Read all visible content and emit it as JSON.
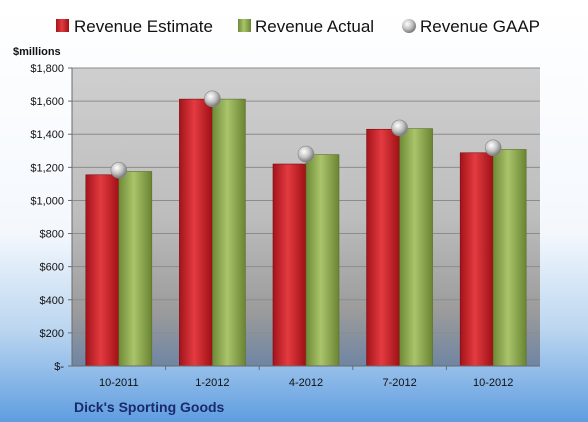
{
  "chart_data": {
    "type": "bar",
    "title": "Dick's Sporting Goods",
    "unit_label": "$millions",
    "categories": [
      "10-2011",
      "1-2012",
      "4-2012",
      "7-2012",
      "10-2012"
    ],
    "series": [
      {
        "name": "Revenue Estimate",
        "type": "bar",
        "color": "#c8242b",
        "values": [
          1155,
          1612,
          1220,
          1430,
          1288
        ]
      },
      {
        "name": "Revenue Actual",
        "type": "bar",
        "color": "#8eab4e",
        "values": [
          1175,
          1612,
          1277,
          1434,
          1308
        ]
      },
      {
        "name": "Revenue GAAP",
        "type": "marker",
        "color": "#b8b8b8",
        "values": [
          1183,
          1614,
          1280,
          1438,
          1318
        ]
      }
    ],
    "y_ticks": [
      "$-",
      "$200",
      "$400",
      "$600",
      "$800",
      "$1,000",
      "$1,200",
      "$1,400",
      "$1,600",
      "$1,800"
    ],
    "ylim": [
      0,
      1800
    ],
    "legend_position": "top",
    "grid": true
  }
}
